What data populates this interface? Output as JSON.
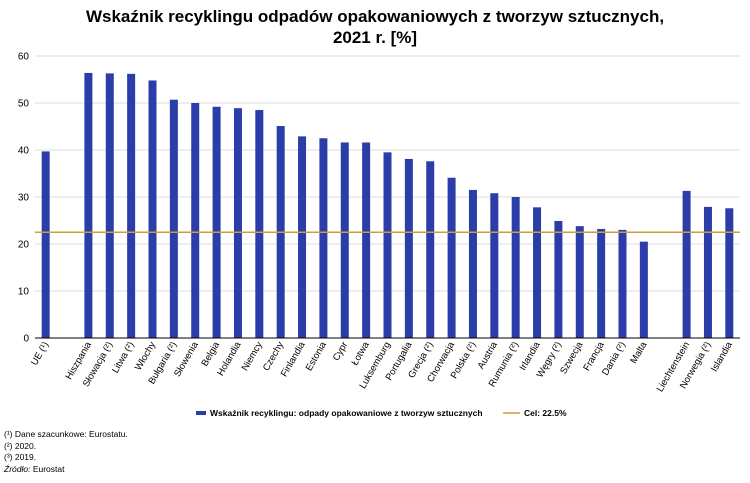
{
  "title": {
    "line1": "Wskaźnik recyklingu odpadów opakowaniowych z tworzyw sztucznych,",
    "line2": "2021 r. [%]"
  },
  "chart_data": {
    "type": "bar",
    "title": "Wskaźnik recyklingu odpadów opakowaniowych z tworzyw sztucznych, 2021 r. [%]",
    "xlabel": "",
    "ylabel": "",
    "ylim": [
      0,
      60
    ],
    "yticks": [
      "0",
      "10",
      "20",
      "30",
      "40",
      "50",
      "60"
    ],
    "grid": true,
    "legend_position": "bottom",
    "categories": [
      "UE (¹)",
      "",
      "Hiszpania",
      "Słowacja (²)",
      "Litwa (²)",
      "Włochy",
      "Bułgaria (²)",
      "Słowenia",
      "Belgia",
      "Holandia",
      "Niemcy",
      "Czechy",
      "Finlandia",
      "Estonia",
      "Cypr",
      "Łotwa",
      "Luksemburg",
      "Portugalia",
      "Grecja (²)",
      "Chorwacja",
      "Polska (²)",
      "Austria",
      "Rumunia (²)",
      "Irlandia",
      "Węgry (²)",
      "Szwecja",
      "Francja",
      "Dania (²)",
      "Malta",
      "",
      "Liechtenstein",
      "Norwegia (²)",
      "Islandia"
    ],
    "series": [
      {
        "name": "Wskaźnik recyklingu: odpady opakowaniowe z tworzyw sztucznych",
        "color": "#2a3da8",
        "values": [
          39.7,
          null,
          56.4,
          56.3,
          56.2,
          54.8,
          50.7,
          50.0,
          49.2,
          48.9,
          48.5,
          45.1,
          42.9,
          42.5,
          41.6,
          41.6,
          39.5,
          38.1,
          37.6,
          34.1,
          31.5,
          30.8,
          30.0,
          27.8,
          24.9,
          23.8,
          23.2,
          23.0,
          20.5,
          null,
          31.3,
          27.9,
          27.6
        ]
      }
    ],
    "target": {
      "name": "Cel: 22.5%",
      "value": 22.5,
      "color": "#c8a13a"
    }
  },
  "notes": {
    "footnote1": "(¹) Dane szacunkowe: Eurostatu.",
    "footnote2": "(²) 2020.",
    "footnote3": "(³) 2019.",
    "source_label": "Źródło:",
    "source_value": " Eurostat"
  },
  "colors": {
    "bar": "#2a3da8",
    "target_line": "#c8a13a",
    "grid": "#dddddd"
  }
}
